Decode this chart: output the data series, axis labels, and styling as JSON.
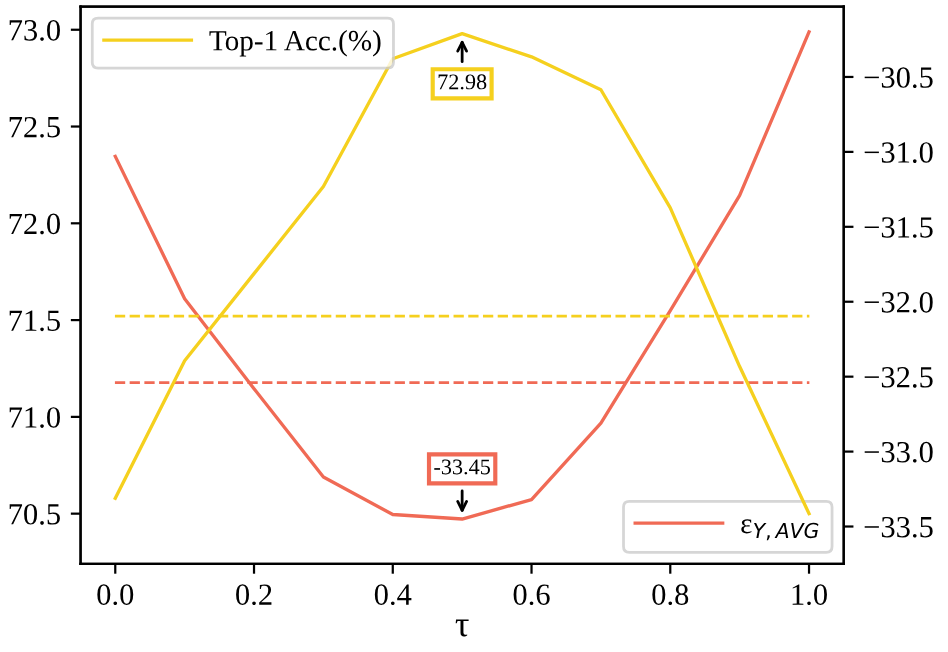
{
  "chart_data": {
    "type": "line",
    "xlabel": "τ",
    "x": [
      0.0,
      0.1,
      0.2,
      0.3,
      0.4,
      0.5,
      0.6,
      0.7,
      0.8,
      0.9,
      1.0
    ],
    "series": [
      {
        "name": "Top-1 Acc.(%)",
        "color": "#f5d01e",
        "values": [
          70.58,
          71.29,
          71.74,
          72.19,
          72.85,
          72.98,
          72.86,
          72.69,
          72.08,
          71.26,
          70.5
        ]
      },
      {
        "name": "ε$_{Y,AVG}$",
        "color": "#f06a55",
        "axis": "y2",
        "values": [
          -31.03,
          -31.98,
          -32.58,
          -33.17,
          -33.42,
          -33.45,
          -33.32,
          -32.81,
          -32.06,
          -31.29,
          -30.2
        ]
      }
    ],
    "ref_lines": [
      {
        "axis": "y",
        "value": 71.52,
        "color": "#f5d01e",
        "line_style": "dashed"
      },
      {
        "axis": "y2",
        "value": -32.54,
        "color": "#f06a55",
        "line_style": "dashed"
      }
    ],
    "annotations": [
      {
        "text": "72.98",
        "x": 0.5,
        "y": 72.98
      },
      "-33.45"
    ],
    "legend": [
      "top left",
      "bottom right"
    ],
    "xlim": [
      -0.05,
      1.05
    ],
    "xticks": [
      {
        "value": 0.0,
        "label": "0.0"
      },
      {
        "value": 0.2,
        "label": "0.2"
      },
      {
        "value": 0.4,
        "label": "0.4"
      },
      {
        "value": 0.6,
        "label": "0.6"
      },
      {
        "value": 0.8,
        "label": "0.8"
      },
      {
        "value": 1.0,
        "label": "1.0"
      }
    ],
    "ylim": [
      70.24,
      73.12
    ],
    "yticks": [
      {
        "value": 70.5,
        "label": "70.5"
      },
      {
        "value": 71.0,
        "label": "71.0"
      },
      {
        "value": 71.5,
        "label": "71.5"
      },
      {
        "value": 72.0,
        "label": "72.0"
      },
      {
        "value": 72.5,
        "label": "72.5"
      },
      {
        "value": 73.0,
        "label": "73.0"
      }
    ],
    "y2lim": [
      -33.75,
      -30.03
    ],
    "y2ticks": [
      {
        "value": -33.5,
        "label": "−33.5"
      },
      {
        "value": -33.0,
        "label": "−33.0"
      },
      {
        "value": -32.5,
        "label": "−32.5"
      },
      {
        "value": -32.0,
        "label": "−32.0"
      },
      {
        "value": -31.5,
        "label": "−31.5"
      },
      {
        "value": -31.0,
        "label": "−31.0"
      },
      {
        "value": -30.5,
        "label": "−30.5"
      }
    ],
    "grid": false,
    "marker": "none",
    "line_style": "solid"
  }
}
